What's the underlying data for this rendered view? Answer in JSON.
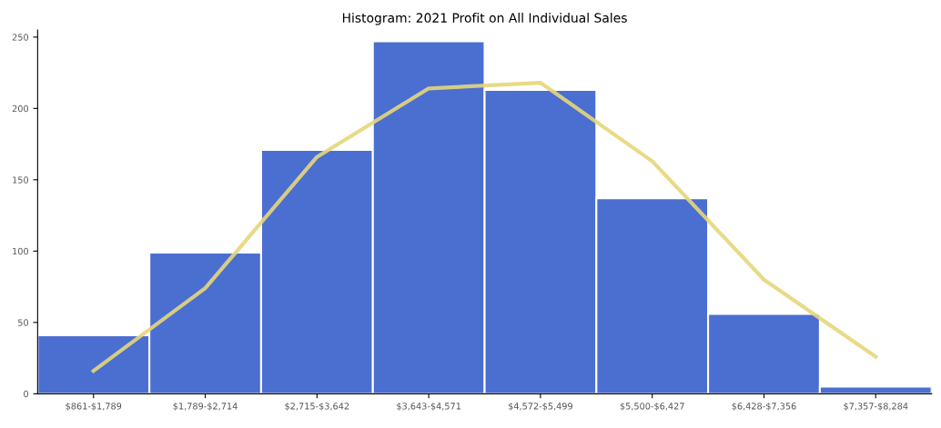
{
  "chart_data": {
    "type": "bar",
    "title": "Histogram: 2021 Profit on All Individual Sales",
    "categories": [
      "$861-$1,789",
      "$1,789-$2,714",
      "$2,715-$3,642",
      "$3,643-$4,571",
      "$4,572-$5,499",
      "$5,500-$6,427",
      "$6,428-$7,356",
      "$7,357-$8,284"
    ],
    "values": [
      41,
      99,
      171,
      247,
      213,
      137,
      56,
      5
    ],
    "color": "#4a6fd0",
    "series": [
      {
        "type": "line",
        "color": "#e6d67a",
        "values": [
          16,
          74,
          166,
          214,
          218,
          163,
          80,
          26
        ]
      }
    ],
    "ylim": [
      0,
      255
    ],
    "yticks": [
      0,
      50,
      100,
      150,
      200,
      250
    ],
    "grid": false,
    "legend": false
  }
}
